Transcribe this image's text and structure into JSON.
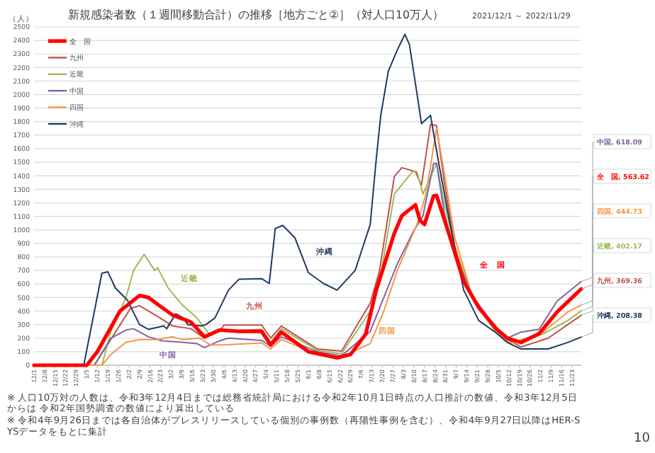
{
  "chart_data": {
    "type": "line",
    "title": "新規感染者数（１週間移動合計）の推移［地方ごと②］（対人口10万人）",
    "subtitle": "2021/12/1 ～ 2022/11/29",
    "ylabel": "（人）",
    "ylim": [
      0,
      2500
    ],
    "yticks": [
      0,
      100,
      200,
      300,
      400,
      500,
      600,
      700,
      800,
      900,
      1000,
      1100,
      1200,
      1300,
      1400,
      1500,
      1600,
      1700,
      1800,
      1900,
      2000,
      2100,
      2200,
      2300,
      2400,
      2500
    ],
    "xlim": [
      "2021-12-01",
      "2022-11-29"
    ],
    "xticks": [
      {
        "value": "2021-12-01",
        "label": "12/1"
      },
      {
        "value": "2021-12-08",
        "label": "12/8"
      },
      {
        "value": "2021-12-15",
        "label": "12/15"
      },
      {
        "value": "2021-12-22",
        "label": "12/22"
      },
      {
        "value": "2021-12-29",
        "label": "12/29"
      },
      {
        "value": "2022-01-05",
        "label": "1/5"
      },
      {
        "value": "2022-01-12",
        "label": "1/12"
      },
      {
        "value": "2022-01-19",
        "label": "1/19"
      },
      {
        "value": "2022-01-26",
        "label": "1/26"
      },
      {
        "value": "2022-02-02",
        "label": "2/2"
      },
      {
        "value": "2022-02-09",
        "label": "2/9"
      },
      {
        "value": "2022-02-16",
        "label": "2/16"
      },
      {
        "value": "2022-02-23",
        "label": "2/23"
      },
      {
        "value": "2022-03-02",
        "label": "3/2"
      },
      {
        "value": "2022-03-09",
        "label": "3/9"
      },
      {
        "value": "2022-03-16",
        "label": "3/16"
      },
      {
        "value": "2022-03-23",
        "label": "3/23"
      },
      {
        "value": "2022-03-30",
        "label": "3/30"
      },
      {
        "value": "2022-04-06",
        "label": "4/6"
      },
      {
        "value": "2022-04-13",
        "label": "4/13"
      },
      {
        "value": "2022-04-20",
        "label": "4/20"
      },
      {
        "value": "2022-04-27",
        "label": "4/27"
      },
      {
        "value": "2022-05-04",
        "label": "5/4"
      },
      {
        "value": "2022-05-11",
        "label": "5/11"
      },
      {
        "value": "2022-05-18",
        "label": "5/18"
      },
      {
        "value": "2022-05-25",
        "label": "5/25"
      },
      {
        "value": "2022-06-01",
        "label": "6/1"
      },
      {
        "value": "2022-06-08",
        "label": "6/8"
      },
      {
        "value": "2022-06-15",
        "label": "6/15"
      },
      {
        "value": "2022-06-22",
        "label": "6/22"
      },
      {
        "value": "2022-06-29",
        "label": "6/29"
      },
      {
        "value": "2022-07-06",
        "label": "7/6"
      },
      {
        "value": "2022-07-13",
        "label": "7/13"
      },
      {
        "value": "2022-07-20",
        "label": "7/20"
      },
      {
        "value": "2022-07-27",
        "label": "7/27"
      },
      {
        "value": "2022-08-03",
        "label": "8/3"
      },
      {
        "value": "2022-08-10",
        "label": "8/10"
      },
      {
        "value": "2022-08-17",
        "label": "8/17"
      },
      {
        "value": "2022-08-24",
        "label": "8/24"
      },
      {
        "value": "2022-08-31",
        "label": "8/31"
      },
      {
        "value": "2022-09-07",
        "label": "9/7"
      },
      {
        "value": "2022-09-14",
        "label": "9/14"
      },
      {
        "value": "2022-09-21",
        "label": "9/21"
      },
      {
        "value": "2022-09-28",
        "label": "9/28"
      },
      {
        "value": "2022-10-05",
        "label": "10/5"
      },
      {
        "value": "2022-10-12",
        "label": "10/12"
      },
      {
        "value": "2022-10-19",
        "label": "10/19"
      },
      {
        "value": "2022-10-26",
        "label": "10/26"
      },
      {
        "value": "2022-11-02",
        "label": "11/2"
      },
      {
        "value": "2022-11-09",
        "label": "11/9"
      },
      {
        "value": "2022-11-16",
        "label": "11/16"
      },
      {
        "value": "2022-11-23",
        "label": "11/23"
      }
    ],
    "grid": "y",
    "legend": "top left",
    "marker": "none",
    "line_style": "solid",
    "series": [
      {
        "name": "全　国",
        "color": "#ff0000",
        "x": [
          "2021-12-01",
          "2022-01-05",
          "2022-01-12",
          "2022-01-27",
          "2022-02-09",
          "2022-02-15",
          "2022-02-21",
          "2022-03-03",
          "2022-03-15",
          "2022-03-24",
          "2022-04-03",
          "2022-04-16",
          "2022-05-01",
          "2022-05-07",
          "2022-05-14",
          "2022-06-01",
          "2022-06-20",
          "2022-06-29",
          "2022-07-09",
          "2022-07-16",
          "2022-07-28",
          "2022-08-02",
          "2022-08-11",
          "2022-08-14",
          "2022-08-17",
          "2022-08-23",
          "2022-08-25",
          "2022-09-03",
          "2022-09-12",
          "2022-09-22",
          "2022-10-04",
          "2022-10-11",
          "2022-10-20",
          "2022-11-01",
          "2022-11-13",
          "2022-11-29"
        ],
        "values": [
          0,
          0,
          100,
          400,
          515,
          500,
          450,
          370,
          320,
          210,
          260,
          250,
          250,
          150,
          245,
          100,
          55,
          80,
          230,
          555,
          975,
          1105,
          1185,
          1070,
          1040,
          1250,
          1255,
          943,
          620,
          426,
          265,
          200,
          168,
          233,
          394,
          563.62
        ]
      },
      {
        "name": "九州",
        "color": "#c0504d",
        "x": [
          "2021-12-01",
          "2022-01-10",
          "2022-02-03",
          "2022-02-09",
          "2022-02-21",
          "2022-03-03",
          "2022-03-15",
          "2022-03-24",
          "2022-04-03",
          "2022-04-06",
          "2022-05-01",
          "2022-05-07",
          "2022-05-14",
          "2022-06-07",
          "2022-06-23",
          "2022-07-12",
          "2022-07-18",
          "2022-07-28",
          "2022-08-02",
          "2022-08-11",
          "2022-08-15",
          "2022-08-21",
          "2022-08-25",
          "2022-08-30",
          "2022-09-06",
          "2022-09-18",
          "2022-10-04",
          "2022-10-20",
          "2022-11-07",
          "2022-11-29"
        ],
        "values": [
          0,
          0,
          420,
          440,
          360,
          290,
          270,
          200,
          250,
          297,
          297,
          200,
          290,
          120,
          105,
          458,
          690,
          1395,
          1460,
          1430,
          1330,
          1780,
          1770,
          1362,
          880,
          490,
          235,
          135,
          200,
          369.36
        ]
      },
      {
        "name": "近畿",
        "color": "#9bbb59",
        "x": [
          "2021-12-01",
          "2022-01-15",
          "2022-01-21",
          "2022-01-31",
          "2022-02-05",
          "2022-02-12",
          "2022-02-19",
          "2022-02-21",
          "2022-02-28",
          "2022-03-09",
          "2022-03-19",
          "2022-03-28",
          "2022-04-03",
          "2022-05-01",
          "2022-05-07",
          "2022-05-14",
          "2022-06-07",
          "2022-06-23",
          "2022-07-12",
          "2022-07-18",
          "2022-07-28",
          "2022-08-09",
          "2022-08-12",
          "2022-08-16",
          "2022-08-25",
          "2022-08-30",
          "2022-09-06",
          "2022-09-18",
          "2022-10-04",
          "2022-10-13",
          "2022-11-04",
          "2022-11-20",
          "2022-11-29"
        ],
        "values": [
          0,
          0,
          250,
          500,
          700,
          820,
          700,
          720,
          570,
          450,
          350,
          220,
          250,
          265,
          170,
          270,
          110,
          85,
          400,
          600,
          1265,
          1430,
          1430,
          1265,
          1491,
          1201,
          880,
          490,
          235,
          168,
          233,
          330,
          402.17
        ]
      },
      {
        "name": "中国",
        "color": "#8064a2",
        "x": [
          "2021-12-01",
          "2022-01-10",
          "2022-01-21",
          "2022-01-31",
          "2022-02-05",
          "2022-02-15",
          "2022-02-24",
          "2022-03-09",
          "2022-03-19",
          "2022-03-24",
          "2022-04-03",
          "2022-04-09",
          "2022-05-01",
          "2022-05-07",
          "2022-05-14",
          "2022-06-07",
          "2022-06-23",
          "2022-07-12",
          "2022-07-21",
          "2022-07-30",
          "2022-08-09",
          "2022-08-16",
          "2022-08-23",
          "2022-08-25",
          "2022-08-30",
          "2022-09-06",
          "2022-09-18",
          "2022-10-04",
          "2022-10-11",
          "2022-10-20",
          "2022-11-01",
          "2022-11-13",
          "2022-11-29"
        ],
        "values": [
          0,
          0,
          200,
          260,
          270,
          210,
          180,
          170,
          160,
          130,
          180,
          200,
          183,
          140,
          210,
          100,
          70,
          250,
          500,
          750,
          975,
          1105,
          1490,
          1491,
          1135,
          815,
          510,
          265,
          200,
          245,
          265,
          475,
          618.09
        ]
      },
      {
        "name": "四国",
        "color": "#f79646",
        "x": [
          "2021-12-01",
          "2022-01-15",
          "2022-01-21",
          "2022-01-31",
          "2022-02-09",
          "2022-02-21",
          "2022-03-03",
          "2022-03-09",
          "2022-03-21",
          "2022-03-28",
          "2022-04-06",
          "2022-05-01",
          "2022-05-07",
          "2022-05-14",
          "2022-06-07",
          "2022-06-23",
          "2022-07-12",
          "2022-07-21",
          "2022-07-30",
          "2022-08-12",
          "2022-08-18",
          "2022-08-25",
          "2022-08-30",
          "2022-09-06",
          "2022-09-18",
          "2022-10-04",
          "2022-10-13",
          "2022-11-01",
          "2022-11-20",
          "2022-11-29"
        ],
        "values": [
          0,
          0,
          80,
          170,
          190,
          190,
          210,
          190,
          200,
          150,
          150,
          165,
          120,
          190,
          80,
          60,
          160,
          400,
          700,
          1040,
          1265,
          1750,
          1430,
          945,
          500,
          250,
          160,
          220,
          394,
          444.73
        ]
      },
      {
        "name": "沖縄",
        "color": "#1f3864",
        "x": [
          "2021-12-01",
          "2022-01-03",
          "2022-01-15",
          "2022-01-19",
          "2022-01-24",
          "2022-02-01",
          "2022-02-09",
          "2022-02-15",
          "2022-02-25",
          "2022-02-27",
          "2022-03-05",
          "2022-03-10",
          "2022-03-13",
          "2022-03-22",
          "2022-03-25",
          "2022-03-31",
          "2022-04-09",
          "2022-04-16",
          "2022-05-01",
          "2022-05-06",
          "2022-05-10",
          "2022-05-15",
          "2022-05-23",
          "2022-06-01",
          "2022-06-11",
          "2022-06-20",
          "2022-07-02",
          "2022-07-12",
          "2022-07-16",
          "2022-07-19",
          "2022-07-24",
          "2022-07-30",
          "2022-08-04",
          "2022-08-07",
          "2022-08-12",
          "2022-08-15",
          "2022-08-21",
          "2022-08-27",
          "2022-09-03",
          "2022-09-12",
          "2022-09-22",
          "2022-10-04",
          "2022-10-11",
          "2022-10-20",
          "2022-11-07",
          "2022-11-20",
          "2022-11-29"
        ],
        "values": [
          0,
          0,
          680,
          690,
          570,
          480,
          300,
          265,
          290,
          270,
          380,
          350,
          300,
          290,
          300,
          350,
          555,
          636,
          640,
          604,
          1010,
          1033,
          943,
          684,
          604,
          555,
          700,
          1040,
          1524,
          1847,
          2173,
          2331,
          2445,
          2370,
          2009,
          1785,
          1847,
          1459,
          1040,
          555,
          330,
          235,
          168,
          120,
          120,
          168,
          208.38
        ]
      }
    ],
    "annotations": [
      "近畿",
      "中国",
      "九州",
      "沖縄",
      "四国",
      "全　国",
      {
        "text": "中国, 618.09",
        "x": "2022-11-29",
        "y": 618.09
      },
      {
        "text": "全　国, 563.62",
        "x": "2022-11-29",
        "y": 563.62
      },
      {
        "text": "四国, 444.73",
        "x": "2022-11-29",
        "y": 444.73
      },
      {
        "text": "近畿, 402.17",
        "x": "2022-11-29",
        "y": 402.17
      },
      {
        "text": "九州, 369.36",
        "x": "2022-11-29",
        "y": 369.36
      },
      {
        "text": "沖縄, 208.38",
        "x": "2022-11-29",
        "y": 208.38
      },
      "※ 人口10万対の人数は、令和3年12月4日までは総務省統計局における令和2年10月1日時点の人口推計の数値、令和3年12月5日からは 令和2年国勢調査の数値により算出している",
      "※ 令和4年9月26日までは各自治体がプレスリリースしている個別の事例数（再陽性事例を含む）、令和4年9月27日以降はHER-SYSデータをもとに集計",
      "10"
    ]
  }
}
